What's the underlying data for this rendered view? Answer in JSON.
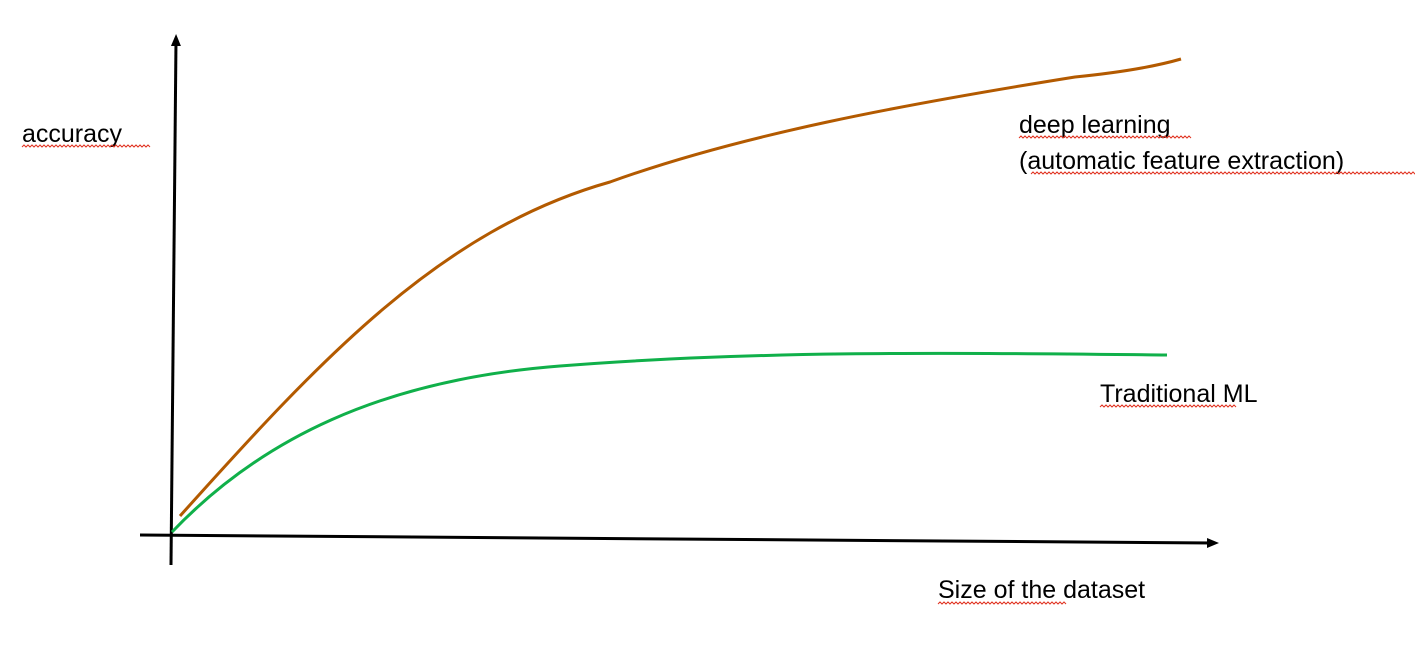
{
  "diagram": {
    "y_axis_label": "accuracy",
    "x_axis_label": "Size of the dataset",
    "curves": [
      {
        "name_lines": [
          "deep learning",
          "(automatic feature extraction)"
        ],
        "color": "#b35a00"
      },
      {
        "name_lines": [
          "Traditional ML"
        ],
        "color": "#10b04a"
      }
    ],
    "axis_color": "#000000",
    "spellcheck_underline_color": "#e0301e"
  }
}
